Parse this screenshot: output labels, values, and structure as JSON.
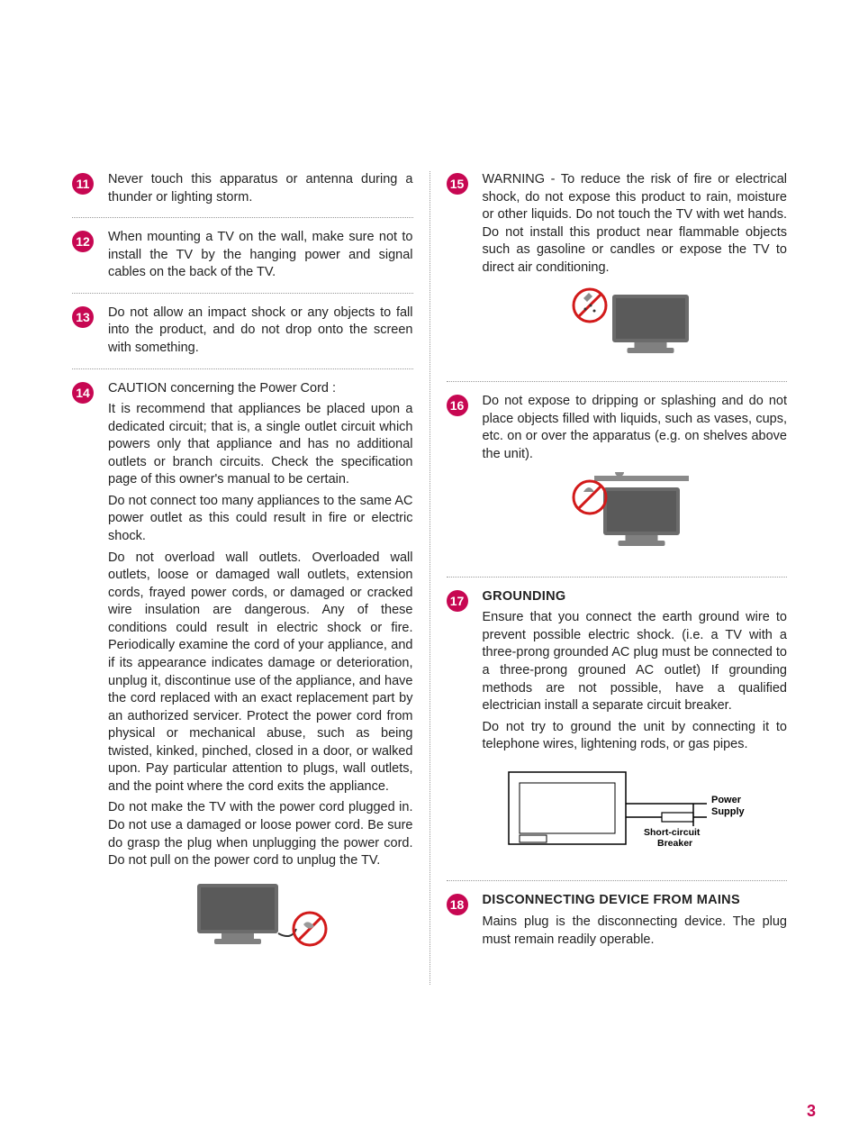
{
  "colors": {
    "accent": "#c70752",
    "text": "#222222",
    "dotted": "#999999",
    "background": "#ffffff",
    "tvFrame": "#6b6b6b",
    "tvScreen": "#5a5a5a",
    "tvBase": "#808080",
    "prohibitRed": "#d21a1a",
    "diagramLabel": "#000000"
  },
  "typography": {
    "body_fontsize": 14.5,
    "heading_fontsize": 14.5,
    "bullet_fontsize": 14,
    "pagenum_fontsize": 18
  },
  "pagenum": "3",
  "left": [
    {
      "n": "11",
      "paras": [
        "Never touch this apparatus or antenna during a thunder or lighting storm."
      ]
    },
    {
      "n": "12",
      "paras": [
        "When mounting a TV on the wall, make sure not to install the TV by the hanging power and signal cables on the back of the TV."
      ]
    },
    {
      "n": "13",
      "paras": [
        "Do not allow an impact shock or any objects to fall into the product, and do not drop onto the screen with something."
      ]
    },
    {
      "n": "14",
      "paras": [
        "CAUTION concerning the Power Cord :",
        "It is recommend that appliances be placed upon a dedicated circuit; that is, a single outlet circuit which powers only that appliance and has no additional outlets or branch circuits. Check the specification page of this owner's manual to be certain.",
        "Do not connect too many appliances to the same AC power outlet as this could result in fire or electric shock.",
        "Do not overload wall outlets. Overloaded wall outlets, loose or damaged wall outlets, extension cords, frayed power cords, or damaged or cracked wire insulation are dangerous. Any of these conditions could result in electric shock or fire. Periodically examine the cord of your appliance, and if its appearance indicates damage or deterioration, unplug it, discontinue use of the appliance, and have the cord replaced with an exact replacement part by an authorized servicer. Protect the power cord from physical or mechanical abuse, such as being twisted, kinked, pinched, closed in a door, or walked upon. Pay particular attention to plugs, wall outlets, and the point where the cord exits the appliance.",
        "Do not make the TV with the power cord plugged in. Do not use a damaged or loose power cord. Be sure do grasp the plug when unplugging the power cord. Do not pull on the power cord to unplug the TV."
      ],
      "fig": "tv_cord_no"
    }
  ],
  "right": [
    {
      "n": "15",
      "paras": [
        "WARNING - To reduce the risk of fire or electrical shock, do not expose this product to rain, moisture or other liquids. Do not touch the TV with wet hands. Do not install this product near flammable objects such as gasoline or candles or expose the TV to direct air conditioning."
      ],
      "fig": "tv_no_clean"
    },
    {
      "n": "16",
      "paras": [
        "Do not expose to dripping or splashing and do not place objects filled with liquids, such as vases, cups, etc. on or over the apparatus (e.g. on shelves above the unit)."
      ],
      "fig": "tv_shelf_no"
    },
    {
      "n": "17",
      "heading": "GROUNDING",
      "paras": [
        "Ensure that you connect the earth ground wire to prevent possible electric shock. (i.e. a TV with a three-prong grounded AC plug must be connected to a three-prong grouned AC outlet) If grounding methods are not possible, have a qualified electrician install a separate circuit breaker.",
        "Do not try to ground the unit by connecting it to telephone wires, lightening rods, or gas pipes."
      ],
      "fig": "grounding_diagram"
    },
    {
      "n": "18",
      "heading": "DISCONNECTING DEVICE FROM MAINS",
      "paras": [
        "Mains plug is the disconnecting device. The plug must remain readily operable."
      ]
    }
  ],
  "diagram_labels": {
    "power_supply": "Power\nSupply",
    "breaker": "Short-circuit\nBreaker"
  }
}
